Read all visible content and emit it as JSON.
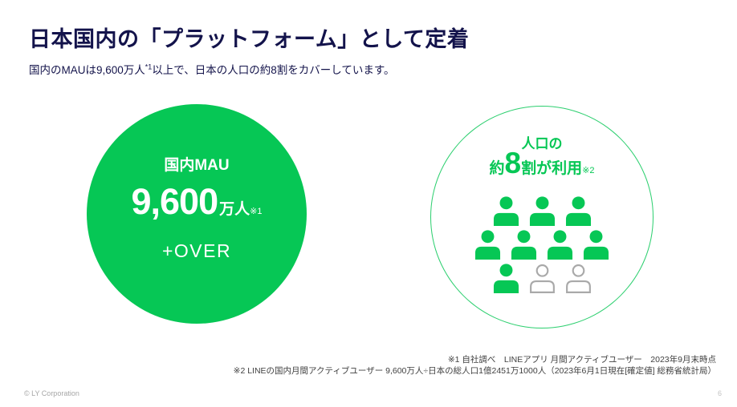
{
  "header": {
    "title": "日本国内の「プラットフォーム」として定着",
    "subtitle_prefix": "国内のMAUは9,600万人",
    "subtitle_sup": "*1",
    "subtitle_suffix": "以上で、日本の人口の約8割をカバーしています。"
  },
  "mau_circle": {
    "label": "国内MAU",
    "value": "9,600",
    "unit": "万人",
    "note_ref": "※1",
    "over_label": "+OVER"
  },
  "population_circle": {
    "line1": "人口の",
    "line2_prefix": "約",
    "line2_big": "8",
    "line2_suffix": "割が利用",
    "note_ref": "※2",
    "people_rows": [
      [
        "green",
        "green",
        "green"
      ],
      [
        "green",
        "green",
        "green",
        "green"
      ],
      [
        "green",
        "gray",
        "gray"
      ]
    ]
  },
  "footnotes": [
    "※1 自社調べ　LINEアプリ 月間アクティブユーザー　2023年9月末時点",
    "※2 LINEの国内月間アクティブユーザー 9,600万人÷日本の総人口1億2451万1000人（2023年6月1日現在[確定値] 総務省統計局）"
  ],
  "footer": {
    "copyright": "© LY Corporation",
    "page_number": "6"
  },
  "colors": {
    "brand_green": "#06C755",
    "dark_navy": "#13134B",
    "person_gray": "#A9A9A9",
    "footnote_gray": "#404040"
  }
}
